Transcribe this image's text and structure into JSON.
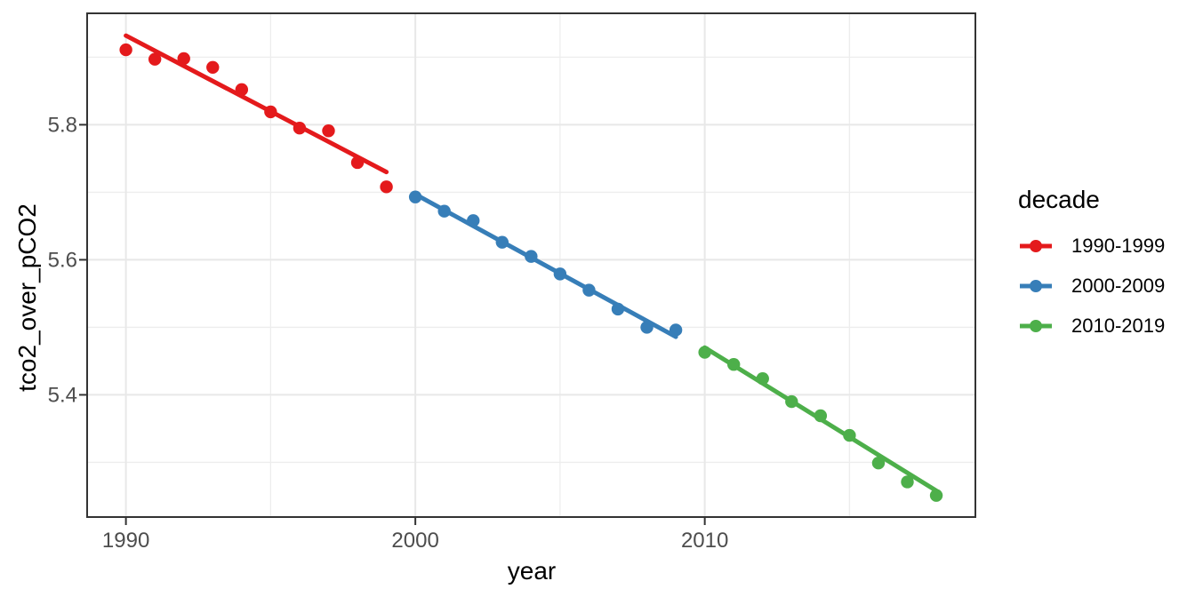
{
  "chart_data": {
    "type": "scatter",
    "title": "",
    "xlabel": "year",
    "ylabel": "tco2_over_pCO2",
    "legend_title": "decade",
    "legend_position": "right",
    "grid": "major+minor",
    "panel_background": "#FFFFFF",
    "x_domain": [
      1988.66,
      2019.35
    ],
    "y_domain": [
      5.219,
      5.965
    ],
    "x_ticks": [
      {
        "value": 1990,
        "label": "1990"
      },
      {
        "value": 2000,
        "label": "2000"
      },
      {
        "value": 2010,
        "label": "2010"
      }
    ],
    "x_minor_ticks": [
      1995,
      2005,
      2015
    ],
    "y_ticks": [
      {
        "value": 5.8,
        "label": "5.8"
      },
      {
        "value": 5.6,
        "label": "5.6"
      },
      {
        "value": 5.4,
        "label": "5.4"
      }
    ],
    "y_minor_ticks": [
      5.9,
      5.7,
      5.5,
      5.3
    ],
    "series": [
      {
        "name": "1990-1999",
        "color": "#E41A1C",
        "x": [
          1990,
          1991,
          1992,
          1993,
          1994,
          1995,
          1996,
          1997,
          1998,
          1999
        ],
        "y": [
          5.911,
          5.897,
          5.898,
          5.885,
          5.852,
          5.819,
          5.795,
          5.791,
          5.744,
          5.708
        ],
        "trend": {
          "x": [
            1990,
            1999
          ],
          "y": [
            5.932,
            5.73
          ]
        }
      },
      {
        "name": "2000-2009",
        "color": "#377EB8",
        "x": [
          2000,
          2001,
          2002,
          2003,
          2004,
          2005,
          2006,
          2007,
          2008,
          2009
        ],
        "y": [
          5.693,
          5.672,
          5.658,
          5.626,
          5.605,
          5.579,
          5.555,
          5.527,
          5.5,
          5.496
        ],
        "trend": {
          "x": [
            2000,
            2009
          ],
          "y": [
            5.697,
            5.486
          ]
        }
      },
      {
        "name": "2010-2019",
        "color": "#4DAF4A",
        "x": [
          2010,
          2011,
          2012,
          2013,
          2014,
          2015,
          2016,
          2017,
          2018
        ],
        "y": [
          5.463,
          5.445,
          5.424,
          5.39,
          5.369,
          5.34,
          5.299,
          5.271,
          5.251
        ],
        "trend": {
          "x": [
            2010,
            2018
          ],
          "y": [
            5.47,
            5.258
          ]
        }
      }
    ],
    "colors": {
      "grid_major": "#E8E8E8",
      "grid_minor": "#EDEDED",
      "panel_border": "#333333",
      "tick_mark": "#333333",
      "tick_label": "#4D4D4D",
      "text": "#000000"
    }
  }
}
